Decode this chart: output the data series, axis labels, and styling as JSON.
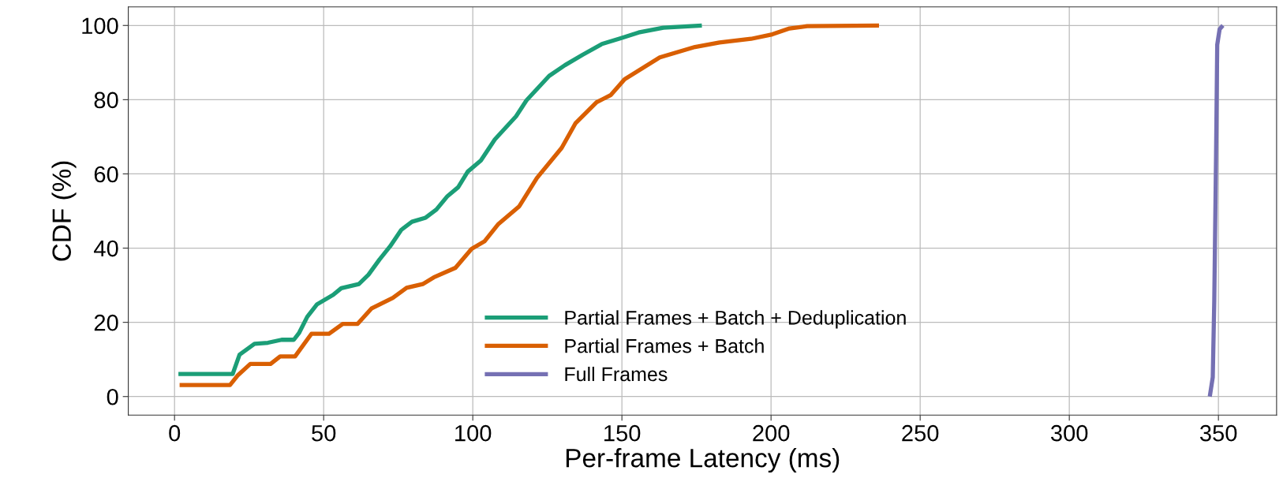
{
  "chart_data": {
    "type": "line",
    "xlabel": "Per-frame Latency (ms)",
    "ylabel": "CDF (%)",
    "xlim": [
      -15.5,
      369.5
    ],
    "xticks": [
      0,
      50,
      100,
      150,
      200,
      250,
      300,
      350
    ],
    "ylim": [
      -5,
      105
    ],
    "yticks": [
      0,
      20,
      40,
      60,
      80,
      100
    ],
    "grid": true,
    "legend": "bottom",
    "marker": "none",
    "line_style": "solid",
    "series": [
      {
        "name": "Partial Frames + Batch + Deduplication",
        "color": "#1b9e77",
        "x": [
          1.3,
          19.5,
          21.8,
          26.8,
          31.3,
          35.9,
          40,
          41.8,
          44.5,
          47.7,
          53.2,
          55.9,
          61.8,
          65,
          68.7,
          72.3,
          76,
          79.6,
          84.2,
          87.8,
          91.5,
          95.1,
          98.3,
          102.7,
          107.4,
          114.5,
          118,
          125.6,
          130.9,
          136.8,
          143.3,
          149.8,
          155.6,
          163.9,
          176.8
        ],
        "values": [
          6.1,
          6.1,
          11.3,
          14.2,
          14.5,
          15.3,
          15.3,
          17.2,
          21.5,
          24.8,
          27.4,
          29.2,
          30.3,
          32.8,
          36.9,
          40.5,
          44.9,
          47.1,
          48.2,
          50.4,
          54,
          56.4,
          60.6,
          63.6,
          69.3,
          75.5,
          79.8,
          86.4,
          89.3,
          92.1,
          95,
          96.6,
          98.1,
          99.4,
          100
        ]
      },
      {
        "name": "Partial Frames + Batch",
        "color": "#d95f02",
        "x": [
          1.7,
          18.6,
          21.3,
          25.4,
          32.2,
          35.4,
          40.4,
          45.9,
          51.8,
          56.4,
          61.4,
          66,
          73.2,
          77.8,
          83.2,
          86.9,
          94.2,
          99.6,
          103.9,
          108.6,
          115.6,
          121.5,
          129.8,
          134.4,
          141.5,
          146.2,
          150.9,
          162.7,
          174.5,
          182.7,
          193.3,
          200.4,
          206.2,
          212.1,
          236.2
        ],
        "values": [
          3.1,
          3.1,
          5.8,
          8.8,
          8.8,
          10.8,
          10.8,
          16.9,
          16.9,
          19.6,
          19.6,
          23.7,
          26.6,
          29.3,
          30.3,
          32.1,
          34.7,
          39.8,
          41.8,
          46.5,
          51.3,
          58.9,
          67,
          73.6,
          79.3,
          81.2,
          85.5,
          91.4,
          94.2,
          95.4,
          96.4,
          97.6,
          99.2,
          99.8,
          100
        ]
      },
      {
        "name": "Full Frames",
        "color": "#7570b3",
        "x": [
          347.1,
          348.1,
          348.6,
          349.2,
          349.6,
          350.4,
          351.5
        ],
        "values": [
          0,
          5.2,
          25.5,
          64.4,
          94.8,
          99,
          100
        ]
      }
    ]
  }
}
